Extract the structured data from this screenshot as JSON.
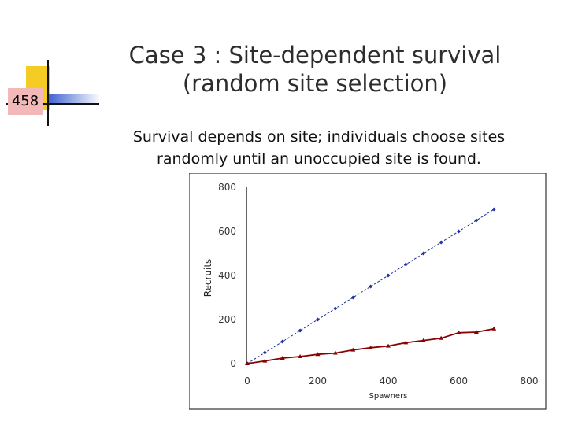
{
  "slide_number": "458",
  "title_line1": "Case 3 : Site-dependent survival",
  "title_line2": "(random site selection)",
  "subtitle_line1": "Survival depends on site; individuals choose sites",
  "subtitle_line2": "randomly until an unoccupied site is found.",
  "chart_data": {
    "type": "line",
    "xlabel": "Spawners",
    "ylabel": "Recruits",
    "xlim": [
      0,
      800
    ],
    "ylim": [
      0,
      800
    ],
    "xticks": [
      "0",
      "200",
      "400",
      "600",
      "800"
    ],
    "yticks": [
      "0",
      "200",
      "400",
      "600",
      "800"
    ],
    "grid": false,
    "series": [
      {
        "color": "#1f2f9a",
        "marker": "diamond",
        "style": "dashed",
        "x": [
          0,
          50,
          100,
          150,
          200,
          250,
          300,
          350,
          400,
          450,
          500,
          550,
          600,
          650,
          700
        ],
        "y": [
          0,
          50,
          100,
          150,
          200,
          250,
          300,
          350,
          400,
          450,
          500,
          550,
          600,
          650,
          700
        ]
      },
      {
        "color": "#8b0000",
        "marker": "triangle",
        "style": "solid",
        "x": [
          0,
          50,
          100,
          150,
          200,
          250,
          300,
          350,
          400,
          450,
          500,
          550,
          600,
          650,
          700
        ],
        "y": [
          0,
          12,
          25,
          32,
          42,
          48,
          62,
          72,
          80,
          95,
          105,
          115,
          140,
          143,
          158
        ]
      }
    ]
  }
}
